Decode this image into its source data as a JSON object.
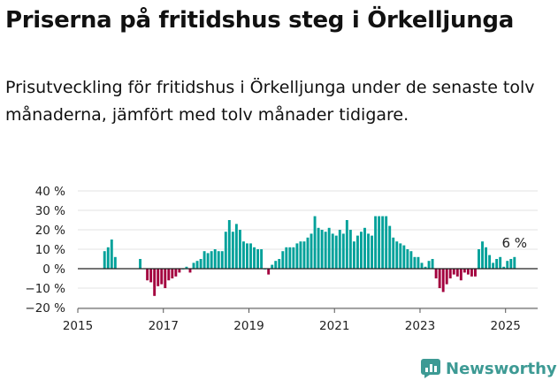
{
  "header": {
    "title": "Priserna på fritidshus steg i Örkelljunga",
    "subtitle": "Prisutveckling för fritidshus i Örkelljunga under de senaste tolv månaderna, jämfört med tolv månader tidigare."
  },
  "brand": {
    "name": "Newsworthy",
    "icon": "newsworthy-logo-icon"
  },
  "colors": {
    "positive": "#00a19a",
    "negative": "#a3003e",
    "grid": "#e3e3e3",
    "zero": "#222222"
  },
  "chart_data": {
    "type": "bar",
    "title": "Priserna på fritidshus steg i Örkelljunga",
    "xlabel": "",
    "ylabel": "",
    "unit": "%",
    "ylim": [
      -20,
      40
    ],
    "yticks": [
      -20,
      -10,
      0,
      10,
      20,
      30,
      40
    ],
    "ytick_labels": [
      "−20 %",
      "−10 %",
      "0 %",
      "10 %",
      "20 %",
      "30 %",
      "40 %"
    ],
    "xlim": [
      2015.0,
      2025.75
    ],
    "xticks": [
      2015,
      2017,
      2019,
      2021,
      2023,
      2025
    ],
    "xtick_labels": [
      "2015",
      "2017",
      "2019",
      "2021",
      "2023",
      "2025"
    ],
    "start_year": 2015,
    "start_month": 1,
    "values": [
      null,
      null,
      null,
      null,
      null,
      null,
      null,
      9,
      11,
      15,
      6,
      null,
      null,
      null,
      null,
      null,
      null,
      5,
      null,
      -6,
      -7,
      -14,
      -9,
      -8,
      -10,
      -6,
      -5,
      -4,
      -2,
      0,
      1,
      -2,
      3,
      4,
      5,
      9,
      8,
      9,
      10,
      9,
      9,
      19,
      25,
      19,
      23,
      20,
      14,
      13,
      13,
      11,
      10,
      10,
      0,
      -3,
      2,
      4,
      5,
      9,
      11,
      11,
      11,
      13,
      14,
      14,
      16,
      18,
      27,
      21,
      20,
      19,
      21,
      18,
      17,
      20,
      18,
      25,
      20,
      14,
      17,
      19,
      21,
      18,
      17,
      27,
      27,
      27,
      27,
      22,
      16,
      14,
      13,
      12,
      10,
      9,
      6,
      6,
      3,
      1,
      4,
      5,
      -5,
      -10,
      -12,
      -8,
      -5,
      -3,
      -4,
      -6,
      -2,
      -3,
      -4,
      -4,
      10,
      14,
      11,
      7,
      3,
      5,
      6,
      1,
      4,
      5,
      6
    ],
    "annotation": {
      "text": "6 %",
      "value": 6
    }
  }
}
